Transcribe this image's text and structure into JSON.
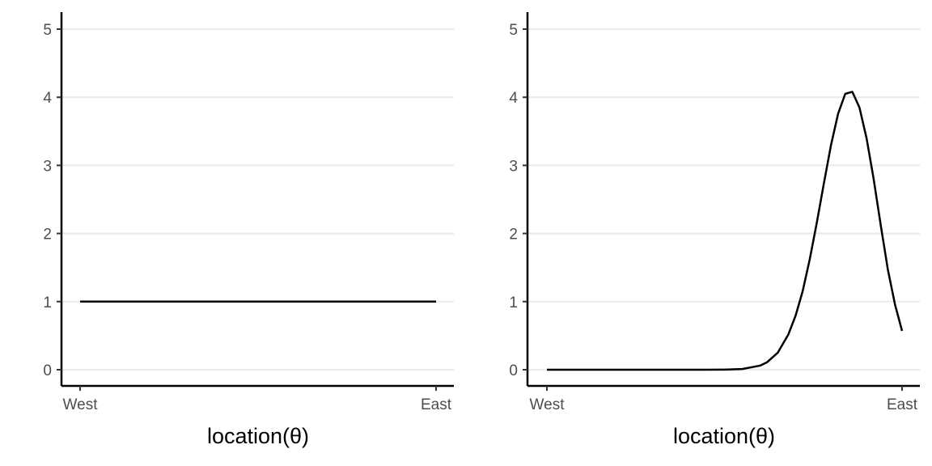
{
  "chart_data": [
    {
      "type": "line",
      "xlabel": "location(θ)",
      "ylabel": "",
      "x_tick_labels": [
        "West",
        "East"
      ],
      "xlim": [
        0,
        1
      ],
      "ylim": [
        0,
        5
      ],
      "y_ticks": [
        0,
        1,
        2,
        3,
        4,
        5
      ],
      "grid": "horizontal major",
      "series": [
        {
          "x": [
            0,
            0.1,
            0.2,
            0.3,
            0.4,
            0.5,
            0.6,
            0.7,
            0.8,
            0.9,
            1.0
          ],
          "y": [
            1,
            1,
            1,
            1,
            1,
            1,
            1,
            1,
            1,
            1,
            1
          ]
        }
      ]
    },
    {
      "type": "line",
      "xlabel": "location(θ)",
      "ylabel": "",
      "x_tick_labels": [
        "West",
        "East"
      ],
      "xlim": [
        0,
        1
      ],
      "ylim": [
        0,
        5
      ],
      "y_ticks": [
        0,
        1,
        2,
        3,
        4,
        5
      ],
      "grid": "horizontal major",
      "series": [
        {
          "x": [
            0,
            0.1,
            0.2,
            0.3,
            0.4,
            0.45,
            0.5,
            0.55,
            0.6,
            0.62,
            0.65,
            0.68,
            0.7,
            0.72,
            0.74,
            0.76,
            0.78,
            0.8,
            0.82,
            0.84,
            0.86,
            0.88,
            0.9,
            0.92,
            0.94,
            0.96,
            0.98,
            1.0
          ],
          "y": [
            0,
            0,
            0,
            0,
            0,
            0,
            0.002,
            0.01,
            0.06,
            0.11,
            0.25,
            0.52,
            0.79,
            1.15,
            1.62,
            2.16,
            2.74,
            3.3,
            3.76,
            4.05,
            4.08,
            3.85,
            3.4,
            2.8,
            2.12,
            1.47,
            0.96,
            0.57
          ]
        }
      ]
    }
  ],
  "panels": [
    {
      "x_tick_labels": [
        "West",
        "East"
      ],
      "y_tick_labels": [
        "0",
        "1",
        "2",
        "3",
        "4",
        "5"
      ],
      "xlabel": "location(θ)"
    },
    {
      "x_tick_labels": [
        "West",
        "East"
      ],
      "y_tick_labels": [
        "0",
        "1",
        "2",
        "3",
        "4",
        "5"
      ],
      "xlabel": "location(θ)"
    }
  ],
  "colors": {
    "line": "#000000",
    "grid": "#ebebeb",
    "tick_text": "#4d4d4d",
    "background": "#ffffff"
  }
}
